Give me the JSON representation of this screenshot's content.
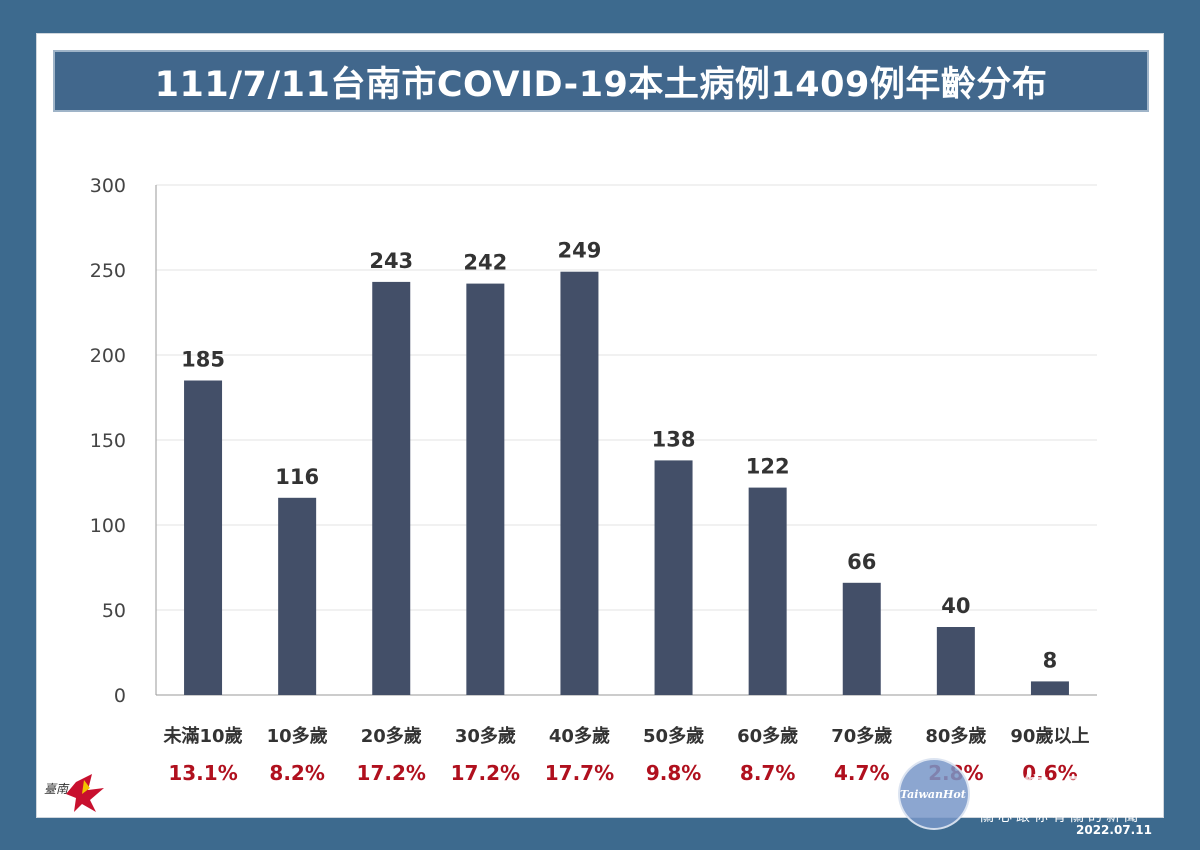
{
  "title": "111/7/11台南市COVID-19本土病例1409例年齡分布",
  "chart_data": {
    "type": "bar",
    "categories": [
      "未滿10歲",
      "10多歲",
      "20多歲",
      "30多歲",
      "40多歲",
      "50多歲",
      "60多歲",
      "70多歲",
      "80多歲",
      "90歲以上"
    ],
    "values": [
      185,
      116,
      243,
      242,
      249,
      138,
      122,
      66,
      40,
      8
    ],
    "percentages": [
      "13.1%",
      "8.2%",
      "17.2%",
      "17.2%",
      "17.7%",
      "9.8%",
      "8.7%",
      "4.7%",
      "2.8%",
      "0.6%"
    ],
    "ylim": [
      0,
      300
    ],
    "yticks": [
      "0",
      "50",
      "100",
      "150",
      "200",
      "250",
      "300"
    ],
    "grid": true,
    "bar_color": "#434f68",
    "percent_color": "#b0101e"
  },
  "logo": {
    "text": "臺南"
  },
  "watermark": {
    "brand": "TaiwanHot",
    "name": "台灣好新聞",
    "slogan": "關心跟你有關的新聞",
    "date": "2022.07.11"
  }
}
